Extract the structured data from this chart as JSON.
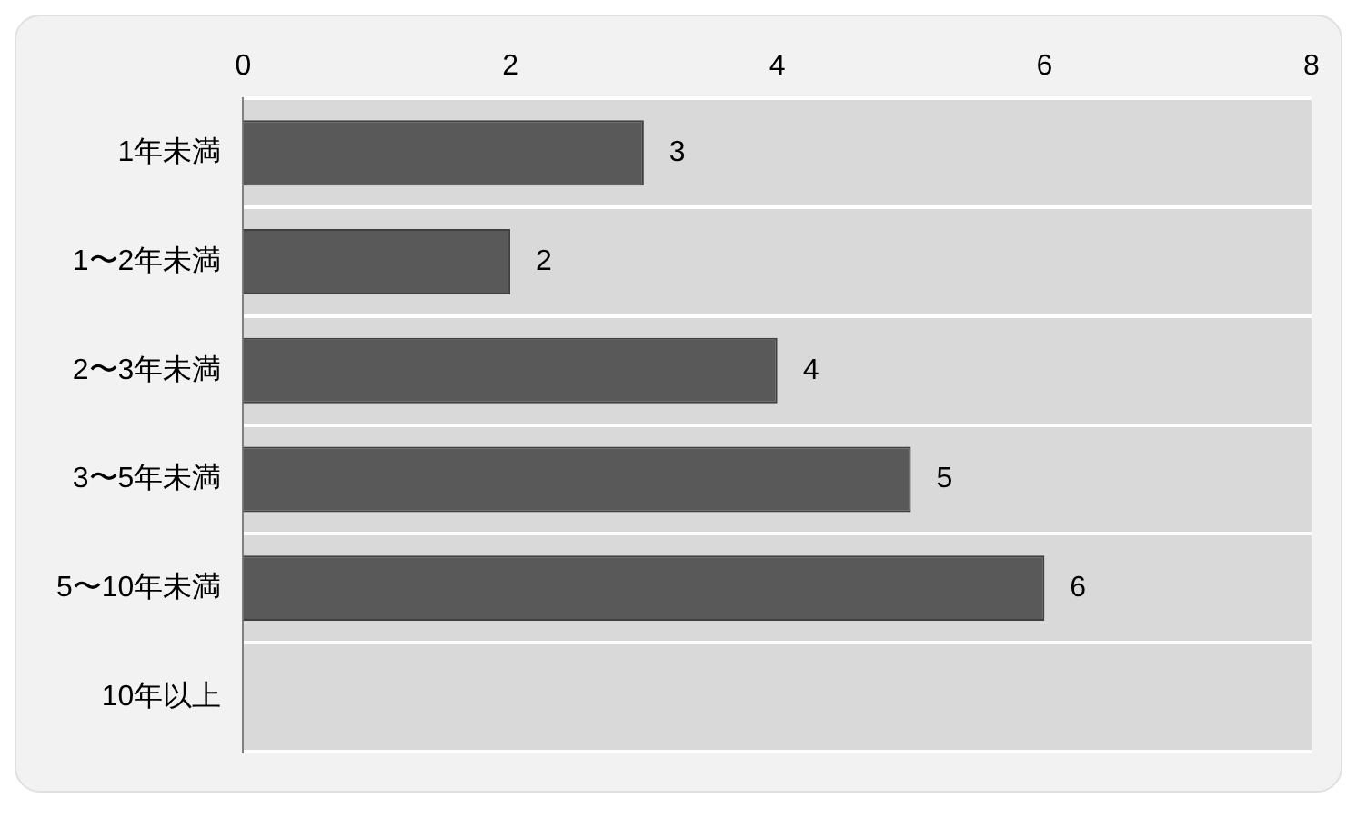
{
  "chart_data": {
    "type": "bar",
    "orientation": "horizontal",
    "categories": [
      "1年未満",
      "1〜2年未満",
      "2〜3年未満",
      "3〜5年未満",
      "5〜10年未満",
      "10年以上"
    ],
    "values": [
      3,
      2,
      4,
      5,
      6,
      0
    ],
    "value_labels": [
      "3",
      "2",
      "4",
      "5",
      "6",
      null
    ],
    "color": "#595959",
    "xlim": [
      0,
      8
    ],
    "xticks": [
      0,
      2,
      4,
      6,
      8
    ],
    "grid": "y",
    "legend": false
  }
}
